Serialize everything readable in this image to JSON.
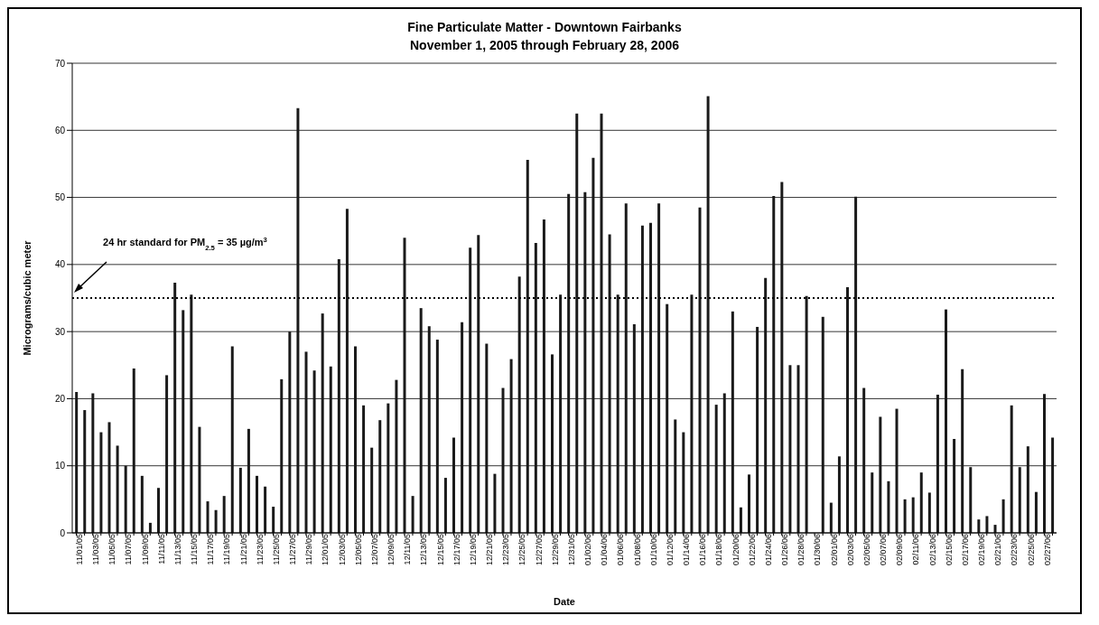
{
  "chart_data": {
    "type": "bar",
    "title": "Fine Particulate Matter - Downtown Fairbanks",
    "subtitle": "November 1, 2005 through February 28, 2006",
    "xlabel": "Date",
    "ylabel": "Micrograms/cubic meter",
    "categories": [
      "11/01/05",
      null,
      "11/03/05",
      null,
      "11/05/05",
      null,
      "11/07/05",
      null,
      "11/09/05",
      null,
      "11/11/05",
      null,
      "11/13/05",
      null,
      "11/15/05",
      null,
      "11/17/05",
      null,
      "11/19/05",
      null,
      "11/21/05",
      null,
      "11/23/05",
      null,
      "11/25/05",
      null,
      "11/27/05",
      null,
      "11/29/05",
      null,
      "12/01/05",
      null,
      "12/03/05",
      null,
      "12/05/05",
      null,
      "12/07/05",
      null,
      "12/09/05",
      null,
      "12/11/05",
      null,
      "12/13/05",
      null,
      "12/15/05",
      null,
      "12/17/05",
      null,
      "12/19/05",
      null,
      "12/21/05",
      null,
      "12/23/05",
      null,
      "12/25/05",
      null,
      "12/27/05",
      null,
      "12/29/05",
      null,
      "12/31/05",
      null,
      "01/02/06",
      null,
      "01/04/06",
      null,
      "01/06/06",
      null,
      "01/08/06",
      null,
      "01/10/06",
      null,
      "01/12/06",
      null,
      "01/14/06",
      null,
      "01/16/06",
      null,
      "01/18/06",
      null,
      "01/20/06",
      null,
      "01/22/06",
      null,
      "01/24/06",
      null,
      "01/26/06",
      null,
      "01/28/06",
      null,
      "01/30/06",
      null,
      "02/01/06",
      null,
      "02/03/06",
      null,
      "02/05/06",
      null,
      "02/07/06",
      null,
      "02/09/06",
      null,
      "02/11/06",
      null,
      "02/13/06",
      null,
      "02/15/06",
      null,
      "02/17/06",
      null,
      "02/19/06",
      null,
      "02/21/06",
      null,
      "02/23/06",
      null,
      "02/25/06",
      null,
      "02/27/06",
      null
    ],
    "values": [
      21,
      18.3,
      20.8,
      15,
      16.5,
      13,
      10,
      24.5,
      8.5,
      1.5,
      6.7,
      23.5,
      37.3,
      33.2,
      35.5,
      15.8,
      4.7,
      3.4,
      5.5,
      27.8,
      9.7,
      15.5,
      8.5,
      6.9,
      3.9,
      22.9,
      30,
      63.3,
      27,
      24.2,
      32.7,
      24.8,
      40.8,
      48.3,
      27.8,
      19,
      12.7,
      16.8,
      19.3,
      22.8,
      44,
      5.5,
      33.5,
      30.8,
      28.8,
      8.2,
      14.2,
      31.4,
      42.5,
      44.4,
      28.2,
      8.8,
      21.6,
      25.9,
      38.2,
      55.6,
      43.2,
      46.7,
      26.6,
      35.5,
      50.5,
      62.5,
      50.8,
      55.9,
      62.5,
      44.5,
      35.5,
      49.1,
      31.1,
      45.8,
      46.2,
      49.1,
      34.1,
      16.9,
      15,
      35.5,
      48.5,
      65.1,
      19.1,
      20.8,
      33,
      3.8,
      8.7,
      30.7,
      38,
      50.2,
      52.3,
      25,
      25,
      35.3,
      null,
      32.2,
      4.5,
      11.4,
      36.6,
      50.1,
      21.6,
      9,
      17.3,
      7.7,
      18.5,
      5,
      5.3,
      9,
      6,
      20.6,
      33.3,
      14,
      24.4,
      9.8,
      2,
      2.5,
      1.2,
      5,
      19,
      9.8,
      12.9,
      6.1,
      20.7,
      14.2
    ],
    "color": "#1a1a1a",
    "ylim": [
      0,
      70
    ],
    "yticks": [
      0,
      10,
      20,
      30,
      40,
      50,
      60,
      70
    ],
    "grid": "y",
    "ref_lines": [
      {
        "axis": "y",
        "value": 35,
        "label": "24 hr standard for PM$_{2.5}$ = 35 µg/m$^{3}$",
        "color": "#000000",
        "line_style": "dotted"
      }
    ]
  }
}
